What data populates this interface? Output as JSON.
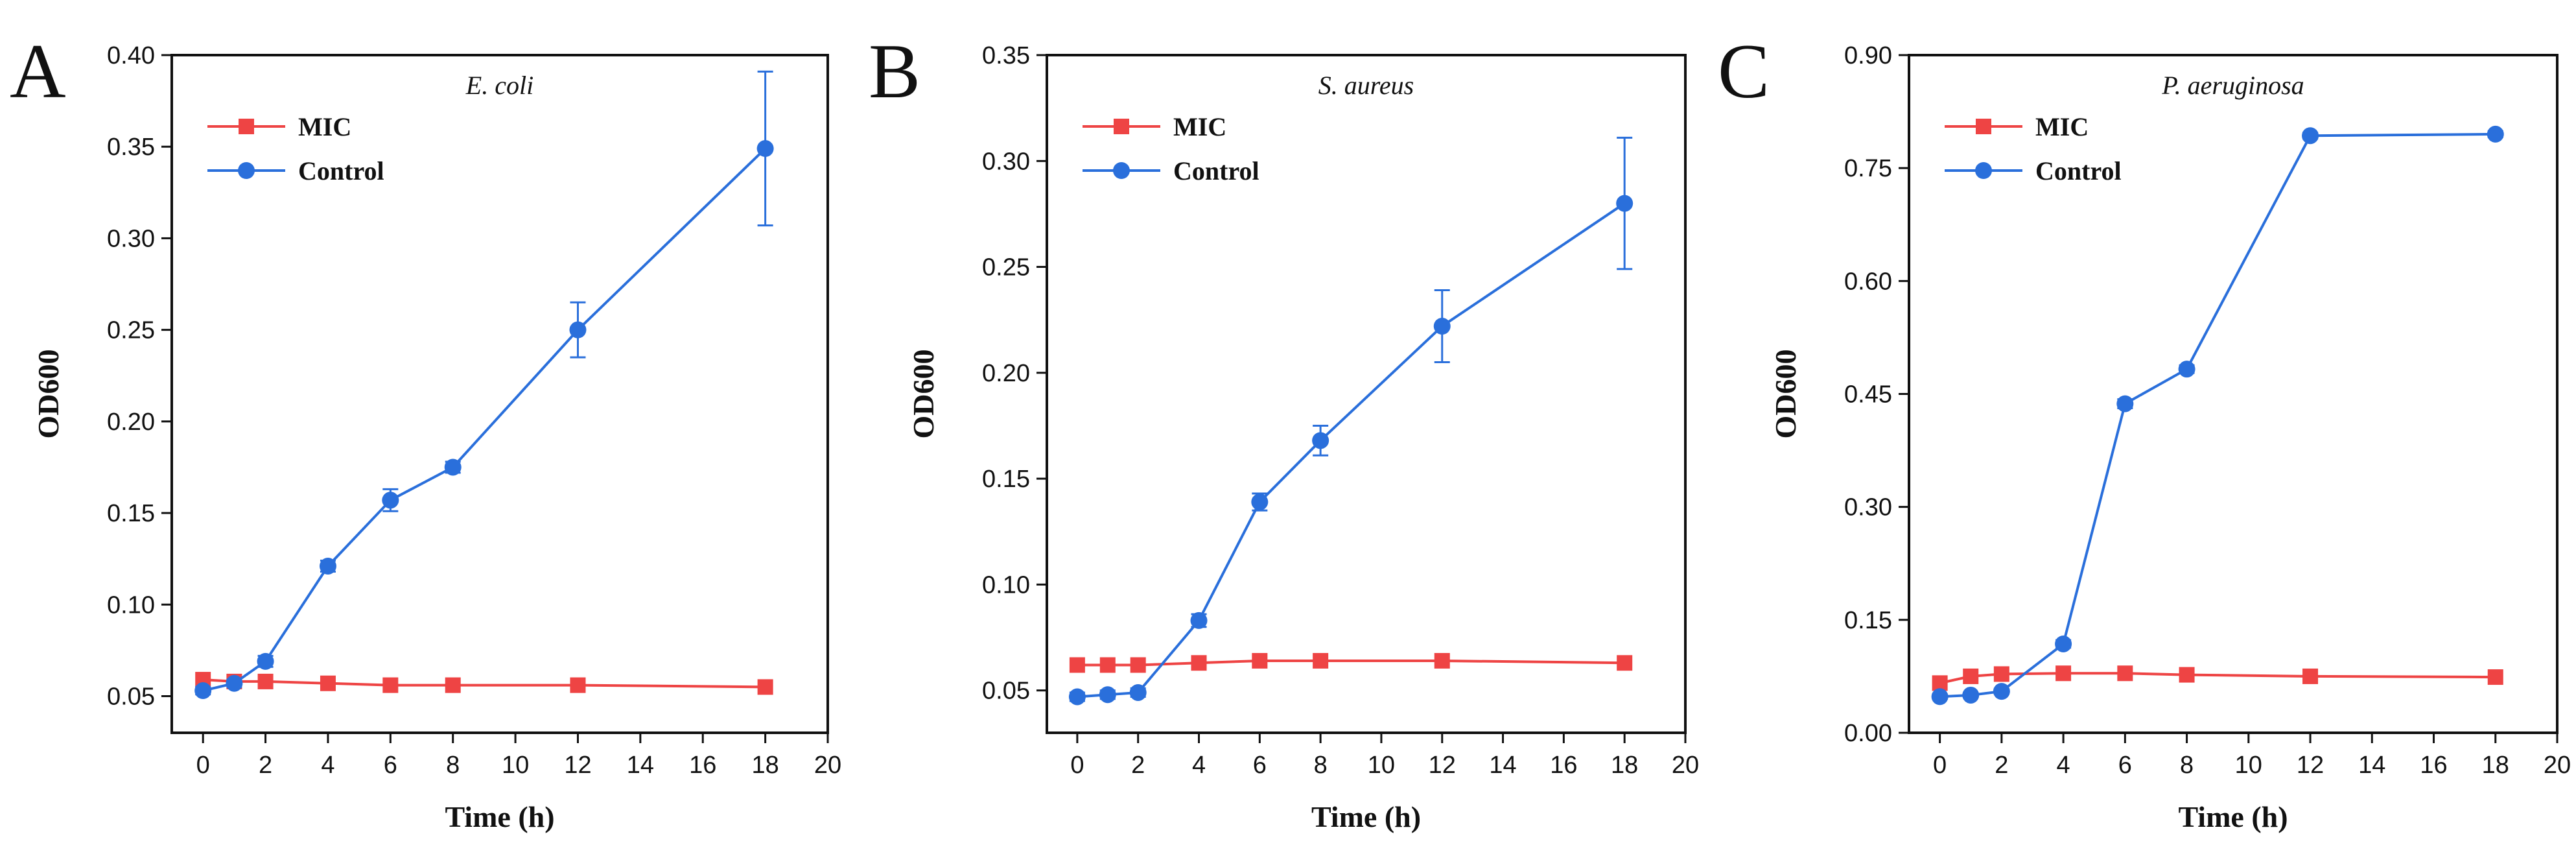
{
  "colors": {
    "mic": "#ee4444",
    "control": "#2a6fdb",
    "axis": "#111111"
  },
  "chart_data": [
    {
      "type": "line",
      "panel": "A",
      "title": "E. coli",
      "xlabel": "Time (h)",
      "ylabel": "OD600",
      "xlim": [
        -1,
        20
      ],
      "ylim": [
        0.03,
        0.4
      ],
      "xticks": [
        0,
        2,
        4,
        6,
        8,
        10,
        12,
        14,
        16,
        18,
        20
      ],
      "yticks": [
        0.05,
        0.1,
        0.15,
        0.2,
        0.25,
        0.3,
        0.35,
        0.4
      ],
      "ytick_labels": [
        "0.05",
        "0.10",
        "0.15",
        "0.20",
        "0.25",
        "0.30",
        "0.35",
        "0.40"
      ],
      "legend": "top-left",
      "x": [
        0,
        1,
        2,
        4,
        6,
        8,
        12,
        18
      ],
      "series": [
        {
          "name": "MIC",
          "marker": "square",
          "values": [
            0.059,
            0.058,
            0.058,
            0.057,
            0.056,
            0.056,
            0.056,
            0.055
          ],
          "errors": [
            0,
            0,
            0,
            0,
            0,
            0,
            0,
            0
          ]
        },
        {
          "name": "Control",
          "marker": "circle",
          "values": [
            0.053,
            0.057,
            0.069,
            0.121,
            0.157,
            0.175,
            0.25,
            0.349
          ],
          "errors": [
            0.002,
            0.002,
            0.003,
            0.003,
            0.006,
            0.003,
            0.015,
            0.042
          ]
        }
      ]
    },
    {
      "type": "line",
      "panel": "B",
      "title": "S. aureus",
      "xlabel": "Time (h)",
      "ylabel": "OD600",
      "xlim": [
        -1,
        20
      ],
      "ylim": [
        0.03,
        0.35
      ],
      "xticks": [
        0,
        2,
        4,
        6,
        8,
        10,
        12,
        14,
        16,
        18,
        20
      ],
      "yticks": [
        0.05,
        0.1,
        0.15,
        0.2,
        0.25,
        0.3,
        0.35
      ],
      "ytick_labels": [
        "0.05",
        "0.10",
        "0.15",
        "0.20",
        "0.25",
        "0.30",
        "0.35"
      ],
      "legend": "top-left",
      "x": [
        0,
        1,
        2,
        4,
        6,
        8,
        12,
        18
      ],
      "series": [
        {
          "name": "MIC",
          "marker": "square",
          "values": [
            0.062,
            0.062,
            0.062,
            0.063,
            0.064,
            0.064,
            0.064,
            0.063
          ],
          "errors": [
            0,
            0,
            0,
            0,
            0,
            0,
            0,
            0
          ]
        },
        {
          "name": "Control",
          "marker": "circle",
          "values": [
            0.047,
            0.048,
            0.049,
            0.083,
            0.139,
            0.168,
            0.222,
            0.28
          ],
          "errors": [
            0.002,
            0.002,
            0.002,
            0.003,
            0.004,
            0.007,
            0.017,
            0.031
          ]
        }
      ]
    },
    {
      "type": "line",
      "panel": "C",
      "title": "P. aeruginosa",
      "xlabel": "Time (h)",
      "ylabel": "OD600",
      "xlim": [
        -1,
        20
      ],
      "ylim": [
        0.0,
        0.9
      ],
      "xticks": [
        0,
        2,
        4,
        6,
        8,
        10,
        12,
        14,
        16,
        18,
        20
      ],
      "yticks": [
        0.0,
        0.15,
        0.3,
        0.45,
        0.6,
        0.75,
        0.9
      ],
      "ytick_labels": [
        "0.00",
        "0.15",
        "0.30",
        "0.45",
        "0.60",
        "0.75",
        "0.90"
      ],
      "legend": "top-left",
      "x": [
        0,
        1,
        2,
        4,
        6,
        8,
        12,
        18
      ],
      "series": [
        {
          "name": "MIC",
          "marker": "square",
          "values": [
            0.066,
            0.075,
            0.078,
            0.079,
            0.079,
            0.077,
            0.075,
            0.074
          ],
          "errors": [
            0,
            0,
            0,
            0,
            0,
            0,
            0,
            0
          ]
        },
        {
          "name": "Control",
          "marker": "circle",
          "values": [
            0.048,
            0.05,
            0.055,
            0.118,
            0.437,
            0.483,
            0.793,
            0.795
          ],
          "errors": [
            0.003,
            0.003,
            0.003,
            0.005,
            0.006,
            0.005,
            0.004,
            0.004
          ]
        }
      ]
    }
  ]
}
